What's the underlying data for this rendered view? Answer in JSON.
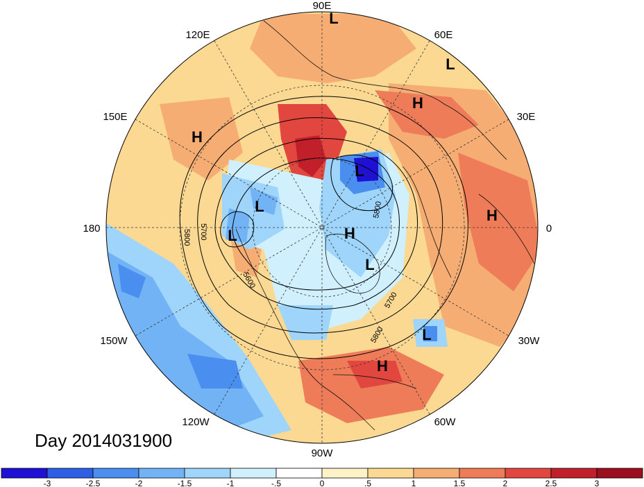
{
  "title": "Day 2014031900",
  "lon_labels": {
    "n": "90E",
    "s": "90W",
    "w": "180",
    "e": "0",
    "ne1": "60E",
    "ne2": "30E",
    "nw1": "120E",
    "nw2": "150E",
    "sw1": "150W",
    "sw2": "120W",
    "se1": "30W",
    "se2": "60W"
  },
  "pressure_centers": [
    {
      "label": "L"
    },
    {
      "label": "L"
    },
    {
      "label": "H"
    },
    {
      "label": "H"
    },
    {
      "label": "L"
    },
    {
      "label": "L"
    },
    {
      "label": "L"
    },
    {
      "label": "H"
    },
    {
      "label": "L"
    },
    {
      "label": "H"
    },
    {
      "label": "L"
    },
    {
      "label": "H"
    }
  ],
  "contour_labels": [
    "5800",
    "5700",
    "5600",
    "5700",
    "5800",
    "5800"
  ],
  "colorbar": {
    "ticks": [
      "-3",
      "-2.5",
      "-2",
      "-1.5",
      "-1",
      "-.5",
      "0",
      ".5",
      "1",
      "1.5",
      "2",
      "2.5",
      "3"
    ],
    "colors": [
      "#1f10d6",
      "#2d5fe6",
      "#4a8ef0",
      "#72b3f6",
      "#9fd5fb",
      "#d0f0fd",
      "#ffffff",
      "#fdf2c8",
      "#fbd993",
      "#f6ad73",
      "#ef7c59",
      "#e2473f",
      "#c1202b",
      "#9c0f1f"
    ]
  },
  "colors": {
    "warm_dark": "#c1202b",
    "warm": "#ef7c59",
    "warm_light": "#f6ad73",
    "warm_pale": "#fbd993",
    "cool_dark": "#1f10d6",
    "cool": "#4a8ef0",
    "cool_light": "#9fd5fb",
    "cool_pale": "#d0f0fd"
  }
}
